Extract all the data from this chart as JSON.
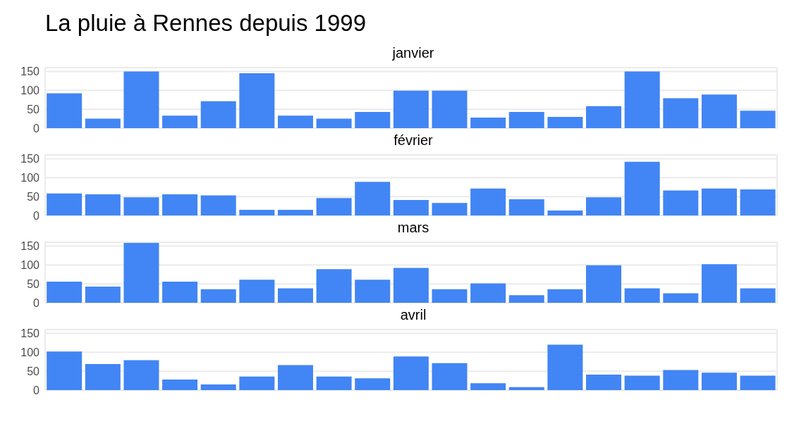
{
  "chart_data": [
    {
      "type": "bar",
      "title": "La pluie à Rennes depuis 1999",
      "subtitle": "janvier",
      "categories": [
        null,
        null,
        null,
        null,
        null,
        null,
        null,
        null,
        null,
        null,
        null,
        null,
        null,
        null,
        null,
        null,
        null,
        null,
        null
      ],
      "values": [
        92,
        25,
        150,
        33,
        71,
        145,
        33,
        25,
        43,
        99,
        99,
        28,
        43,
        30,
        58,
        150,
        79,
        89,
        46
      ],
      "color": "#4285f4",
      "ylim": [
        0,
        160
      ],
      "yticks": [
        0,
        50,
        100,
        150
      ],
      "grid": true,
      "tick_labels": "y"
    },
    {
      "type": "bar",
      "subtitle": "février",
      "categories": [
        null,
        null,
        null,
        null,
        null,
        null,
        null,
        null,
        null,
        null,
        null,
        null,
        null,
        null,
        null,
        null,
        null,
        null,
        null
      ],
      "values": [
        58,
        56,
        48,
        56,
        53,
        15,
        15,
        46,
        89,
        41,
        33,
        71,
        43,
        13,
        48,
        142,
        66,
        71,
        69
      ],
      "color": "#4285f4",
      "ylim": [
        0,
        160
      ],
      "yticks": [
        0,
        50,
        100,
        150
      ],
      "grid": true,
      "tick_labels": "y"
    },
    {
      "type": "bar",
      "subtitle": "mars",
      "categories": [
        null,
        null,
        null,
        null,
        null,
        null,
        null,
        null,
        null,
        null,
        null,
        null,
        null,
        null,
        null,
        null,
        null,
        null,
        null
      ],
      "values": [
        56,
        43,
        158,
        56,
        36,
        61,
        38,
        89,
        61,
        92,
        36,
        51,
        20,
        36,
        99,
        38,
        25,
        102,
        38
      ],
      "color": "#4285f4",
      "ylim": [
        0,
        160
      ],
      "yticks": [
        0,
        50,
        100,
        150
      ],
      "grid": true,
      "tick_labels": "y"
    },
    {
      "type": "bar",
      "subtitle": "avril",
      "categories": [
        null,
        null,
        null,
        null,
        null,
        null,
        null,
        null,
        null,
        null,
        null,
        null,
        null,
        null,
        null,
        null,
        null,
        null,
        null
      ],
      "values": [
        102,
        69,
        79,
        28,
        15,
        36,
        66,
        36,
        31,
        89,
        71,
        18,
        8,
        120,
        41,
        38,
        53,
        46,
        38
      ],
      "color": "#4285f4",
      "ylim": [
        0,
        160
      ],
      "yticks": [
        0,
        50,
        100,
        150
      ],
      "grid": true,
      "tick_labels": "y"
    }
  ]
}
